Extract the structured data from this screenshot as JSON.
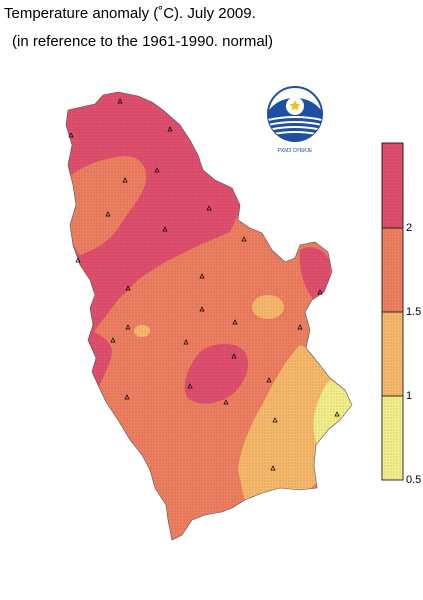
{
  "title": "Temperature anomaly (˚C). July 2009.",
  "subtitle": "(in reference to the 1961-1990. normal)",
  "legend": {
    "labels": [
      "2",
      "1.5",
      "1",
      "0.5"
    ],
    "bands": [
      {
        "range": "above 2",
        "color": "#e0506e"
      },
      {
        "range": "1.5-2",
        "color": "#ee7f61"
      },
      {
        "range": "1-1.5",
        "color": "#f7b96a"
      },
      {
        "range": "0.5-1",
        "color": "#f3ef8a"
      }
    ]
  },
  "logo": {
    "text": "РХМЗ СРБИЈЕ"
  },
  "colors": {
    "above2": "#e0506e",
    "from15to2": "#ee7f61",
    "from1to15": "#f7b96a",
    "from05to1": "#f3ef8a"
  }
}
